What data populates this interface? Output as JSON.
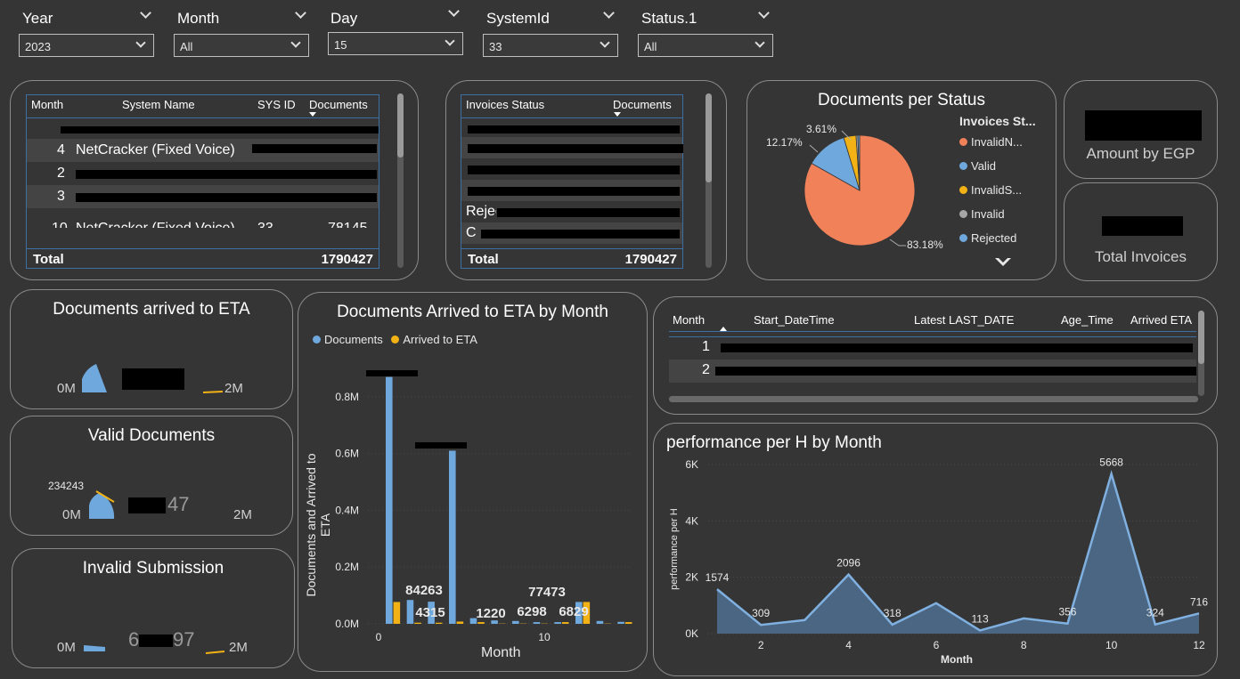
{
  "colors": {
    "background": "#353535",
    "documents_blue": "#6fa8dc",
    "arrived_gold": "#f2b216",
    "invalid_n_orange": "#f08159",
    "invalid_gray": "#a6a6a6",
    "table_border": "#3d6fa3",
    "area_fill": "#4f6f8f"
  },
  "filters": [
    {
      "title": "Year",
      "value": "2023"
    },
    {
      "title": "Month",
      "value": "All"
    },
    {
      "title": "Day",
      "value": "15"
    },
    {
      "title": "SystemId",
      "value": "33"
    },
    {
      "title": "Status.1",
      "value": "All"
    }
  ],
  "system_table": {
    "headers": {
      "month": "Month",
      "system_name": "System Name",
      "sys_id": "SYS ID",
      "documents": "Documents"
    },
    "rows": [
      {
        "month": "",
        "system_name": "",
        "sys_id": "",
        "documents": ""
      },
      {
        "month": "4",
        "system_name": "NetCracker (Fixed Voice)",
        "sys_id": "",
        "documents": ""
      },
      {
        "month": "2",
        "system_name": "",
        "sys_id": "",
        "documents": ""
      },
      {
        "month": "3",
        "system_name": "",
        "sys_id": "",
        "documents": ""
      },
      {
        "month": "10",
        "system_name": "NetCracker (Fixed Voice)",
        "sys_id": "33",
        "documents": "78145"
      }
    ],
    "total_label": "Total",
    "total_value": "1790427"
  },
  "status_table": {
    "headers": {
      "status": "Invoices Status",
      "documents": "Documents"
    },
    "rows": [
      {
        "status": "",
        "documents": ""
      },
      {
        "status": "",
        "documents": ""
      },
      {
        "status": "",
        "documents": ""
      },
      {
        "status": "",
        "documents": ""
      },
      {
        "status": "Rejected",
        "documents": ""
      },
      {
        "status": "C",
        "documents": ""
      }
    ],
    "total_label": "Total",
    "total_value": "1790427"
  },
  "docs_per_status": {
    "title": "Documents per Status",
    "legend_title": "Invoices St...",
    "legend": [
      {
        "label": "InvalidN...",
        "color": "#f08159"
      },
      {
        "label": "Valid",
        "color": "#6fa8dc"
      },
      {
        "label": "InvalidS...",
        "color": "#f2b216"
      },
      {
        "label": "Invalid",
        "color": "#a6a6a6"
      },
      {
        "label": "Rejected",
        "color": "#6fa8dc"
      }
    ],
    "labels": {
      "big": "83.18%",
      "mid": "12.17%",
      "small": "3.61%"
    }
  },
  "amount_card": {
    "label": "Amount by EGP"
  },
  "total_invoices_card": {
    "label": "Total Invoices"
  },
  "gauges": {
    "arrived": {
      "title": "Documents arrived to ETA",
      "min": "0M",
      "max": "2M",
      "fill": 0.5
    },
    "valid": {
      "title": "Valid Documents",
      "min": "0M",
      "max": "2M",
      "target": "234243",
      "value_tail": "47",
      "fill": 0.4
    },
    "invalid": {
      "title": "Invalid Submission",
      "min": "0M",
      "max": "2M",
      "value_head": "6",
      "value_tail": "97",
      "fill": 0.1
    }
  },
  "bar_chart": {
    "title": "Documents Arrived to ETA by Month",
    "legend": [
      "Documents",
      "Arrived to ETA"
    ],
    "ylabel": "Documents and Arrived to ETA",
    "xlabel": "Month",
    "y_ticks": [
      "0.0M",
      "0.2M",
      "0.4M",
      "0.6M",
      "0.8M"
    ],
    "x_ticks": [
      "0",
      "10"
    ],
    "labels": [
      "84263",
      "4315",
      "1220",
      "6298",
      "77473",
      "6829"
    ]
  },
  "eta_table": {
    "headers": {
      "month": "Month",
      "start": "Start_DateTime",
      "latest": "Latest LAST_DATE",
      "age": "Age_Time",
      "arrived": "Arrived ETA"
    },
    "rows": [
      {
        "month": "1"
      },
      {
        "month": "2"
      },
      {
        "month": ""
      }
    ]
  },
  "line_chart": {
    "title": "performance per H by Month",
    "ylabel": "performance per H",
    "xlabel": "Month",
    "y_ticks": [
      "0K",
      "2K",
      "4K",
      "6K"
    ],
    "x_ticks": [
      "2",
      "4",
      "6",
      "8",
      "10",
      "12"
    ]
  },
  "chart_data": [
    {
      "type": "pie",
      "title": "Documents per Status",
      "slices": [
        {
          "label": "InvalidN...",
          "value": 83.18,
          "color": "#f08159"
        },
        {
          "label": "Valid",
          "value": 12.17,
          "color": "#6fa8dc"
        },
        {
          "label": "InvalidS...",
          "value": 3.61,
          "color": "#f2b216"
        },
        {
          "label": "Invalid",
          "value": 0.54,
          "color": "#a6a6a6"
        },
        {
          "label": "Rejected",
          "value": 0.5,
          "color": "#6fa8dc"
        }
      ]
    },
    {
      "type": "bar",
      "title": "Documents Arrived to ETA by Month",
      "xlabel": "Month",
      "ylabel": "Documents and Arrived to ETA",
      "ylim": [
        0,
        0.9
      ],
      "categories": [
        1,
        2,
        3,
        4,
        5,
        6,
        7,
        8,
        9,
        10,
        11,
        12
      ],
      "series": [
        {
          "name": "Documents",
          "values": [
            0.87,
            0.084,
            0.078,
            0.61,
            0.02,
            0.012,
            0.01,
            0.006,
            0.006,
            0.077,
            0.01,
            0.007
          ]
        },
        {
          "name": "Arrived to ETA",
          "values": [
            0.077,
            0.004,
            0.004,
            0.008,
            0.006,
            0.001,
            0.001,
            0.001,
            0.006,
            0.077,
            0.001,
            0.006
          ]
        }
      ]
    },
    {
      "type": "area",
      "title": "performance per H by Month",
      "xlabel": "Month",
      "ylabel": "performance per H",
      "ylim": [
        0,
        6000
      ],
      "x": [
        1,
        2,
        3,
        4,
        5,
        6,
        7,
        8,
        9,
        10,
        11,
        12
      ],
      "y": [
        1574,
        309,
        480,
        2096,
        318,
        1080,
        113,
        540,
        356,
        5668,
        324,
        716
      ],
      "point_labels": {
        "1": "1574",
        "2": "309",
        "4": "2096",
        "5": "318",
        "7": "113",
        "9": "356",
        "10": "5668",
        "11": "324",
        "12": "716"
      }
    }
  ]
}
